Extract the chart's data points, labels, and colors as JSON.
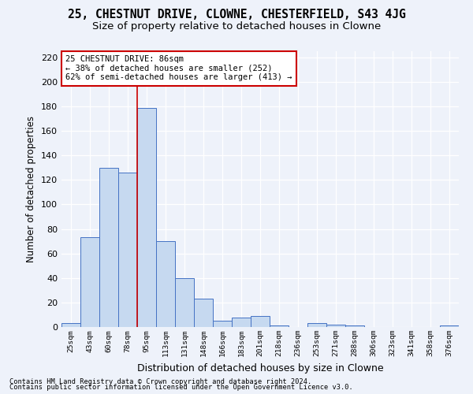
{
  "title1": "25, CHESTNUT DRIVE, CLOWNE, CHESTERFIELD, S43 4JG",
  "title2": "Size of property relative to detached houses in Clowne",
  "xlabel": "Distribution of detached houses by size in Clowne",
  "ylabel": "Number of detached properties",
  "categories": [
    "25sqm",
    "43sqm",
    "60sqm",
    "78sqm",
    "95sqm",
    "113sqm",
    "131sqm",
    "148sqm",
    "166sqm",
    "183sqm",
    "201sqm",
    "218sqm",
    "236sqm",
    "253sqm",
    "271sqm",
    "288sqm",
    "306sqm",
    "323sqm",
    "341sqm",
    "358sqm",
    "376sqm"
  ],
  "values": [
    3,
    73,
    130,
    126,
    179,
    70,
    40,
    23,
    5,
    8,
    9,
    1,
    0,
    3,
    2,
    1,
    0,
    0,
    0,
    0,
    1
  ],
  "bar_color": "#c6d9f0",
  "bar_edge_color": "#4472c4",
  "vline_x": 3.5,
  "vline_color": "#cc0000",
  "ylim": [
    0,
    225
  ],
  "yticks": [
    0,
    20,
    40,
    60,
    80,
    100,
    120,
    140,
    160,
    180,
    200,
    220
  ],
  "annotation_text": "25 CHESTNUT DRIVE: 86sqm\n← 38% of detached houses are smaller (252)\n62% of semi-detached houses are larger (413) →",
  "annotation_box_color": "#ffffff",
  "annotation_box_edge_color": "#cc0000",
  "footnote1": "Contains HM Land Registry data © Crown copyright and database right 2024.",
  "footnote2": "Contains public sector information licensed under the Open Government Licence v3.0.",
  "background_color": "#eef2fa",
  "grid_color": "#ffffff",
  "title1_fontsize": 10.5,
  "title2_fontsize": 9.5,
  "xlabel_fontsize": 9,
  "ylabel_fontsize": 8.5,
  "annotation_fontsize": 7.5
}
